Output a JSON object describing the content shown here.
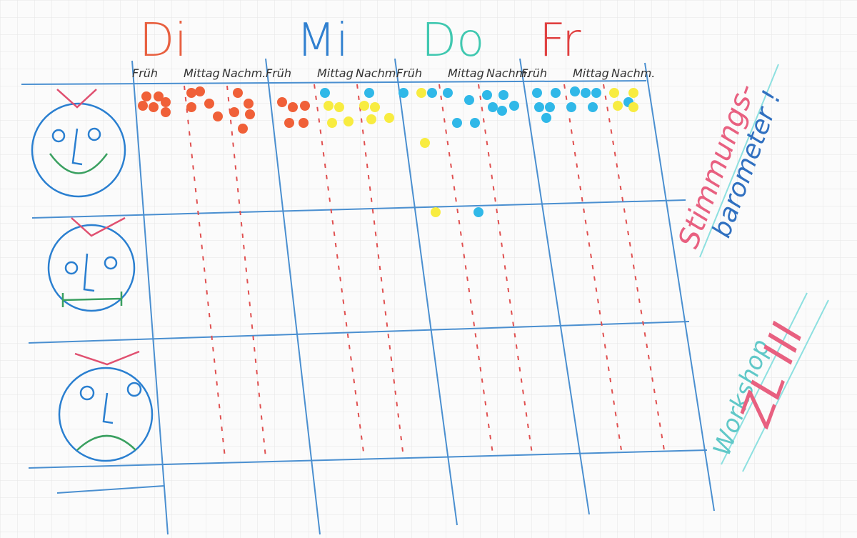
{
  "header": {
    "days": [
      "Di",
      "Mi",
      "Do",
      "Fr"
    ],
    "slots": [
      "Früh",
      "Mittag",
      "Nachm."
    ]
  },
  "side": {
    "title": "Stimmungs-",
    "subtitle": "barometer !",
    "workshop": "Workshop",
    "code": "ZL III"
  }
}
